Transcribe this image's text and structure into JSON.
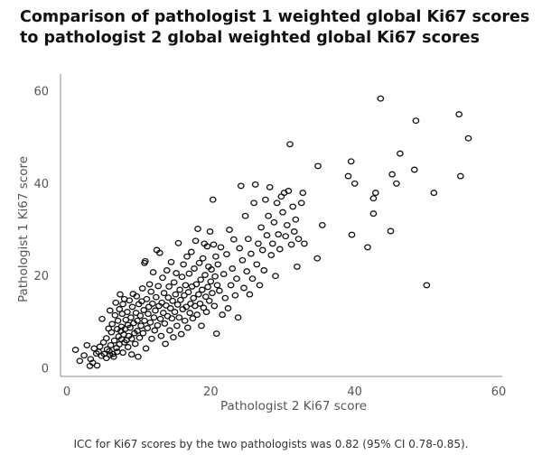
{
  "chart_data": {
    "type": "scatter",
    "title_lines": [
      "Comparison of pathologist 1 weighted global Ki67 scores",
      "to pathologist 2 global weighted global Ki67 scores"
    ],
    "xlabel": "Pathologist 2 Ki67 score",
    "ylabel": "Pathologist 1 Ki67 score",
    "xlim": [
      0,
      62
    ],
    "ylim": [
      -1,
      62
    ],
    "xticks": [
      0,
      20,
      40,
      60
    ],
    "yticks": [
      0,
      20,
      40,
      60
    ],
    "grid": false,
    "marker": "open-circle",
    "series": [
      {
        "name": "Ki67 scores",
        "points": [
          [
            1.2,
            4
          ],
          [
            1.8,
            1.6
          ],
          [
            2.4,
            2.8
          ],
          [
            2.8,
            5.0
          ],
          [
            3.2,
            0.5
          ],
          [
            3.3,
            2.0
          ],
          [
            3.6,
            1.2
          ],
          [
            3.8,
            4.3
          ],
          [
            4.1,
            3.2
          ],
          [
            4.2,
            0.6
          ],
          [
            4.4,
            3.6
          ],
          [
            4.6,
            4.7
          ],
          [
            4.8,
            2.7
          ],
          [
            4.9,
            10.7
          ],
          [
            5.1,
            5.6
          ],
          [
            5.2,
            3.1
          ],
          [
            5.5,
            6.5
          ],
          [
            5.5,
            2.2
          ],
          [
            5.6,
            4.1
          ],
          [
            5.8,
            8.6
          ],
          [
            5.9,
            3.7
          ],
          [
            6.0,
            2.9
          ],
          [
            6.0,
            12.5
          ],
          [
            6.1,
            5.0
          ],
          [
            6.2,
            7.8
          ],
          [
            6.3,
            9.6
          ],
          [
            6.4,
            3.1
          ],
          [
            6.5,
            2.5
          ],
          [
            6.6,
            6.0
          ],
          [
            6.7,
            11.5
          ],
          [
            6.8,
            14.2
          ],
          [
            6.9,
            4.4
          ],
          [
            7.0,
            8.5
          ],
          [
            7.0,
            3.6
          ],
          [
            7.1,
            10.3
          ],
          [
            7.2,
            6.9
          ],
          [
            7.3,
            5.2
          ],
          [
            7.3,
            12.8
          ],
          [
            7.4,
            16.0
          ],
          [
            7.5,
            8.1
          ],
          [
            7.6,
            9.0
          ],
          [
            7.6,
            6.3
          ],
          [
            7.7,
            11.8
          ],
          [
            7.8,
            3.4
          ],
          [
            7.8,
            13.9
          ],
          [
            7.9,
            7.3
          ],
          [
            8.0,
            5.6
          ],
          [
            8.0,
            15.0
          ],
          [
            8.1,
            8.5
          ],
          [
            8.2,
            10.5
          ],
          [
            8.3,
            6.1
          ],
          [
            8.4,
            12.2
          ],
          [
            8.5,
            4.6
          ],
          [
            8.5,
            9.4
          ],
          [
            8.6,
            7.0
          ],
          [
            8.7,
            14.7
          ],
          [
            8.8,
            8.8
          ],
          [
            8.9,
            11.0
          ],
          [
            9.0,
            6.4
          ],
          [
            9.0,
            3.0
          ],
          [
            9.1,
            13.3
          ],
          [
            9.2,
            16.1
          ],
          [
            9.3,
            9.8
          ],
          [
            9.4,
            7.6
          ],
          [
            9.5,
            5.3
          ],
          [
            9.6,
            12.0
          ],
          [
            9.7,
            15.6
          ],
          [
            9.8,
            10.3
          ],
          [
            9.8,
            8.1
          ],
          [
            9.9,
            2.5
          ],
          [
            10.0,
            13.9
          ],
          [
            10.1,
            6.6
          ],
          [
            10.2,
            11.4
          ],
          [
            10.3,
            9.2
          ],
          [
            10.4,
            14.5
          ],
          [
            10.5,
            17.3
          ],
          [
            10.6,
            7.6
          ],
          [
            10.7,
            12.6
          ],
          [
            10.8,
            22.8
          ],
          [
            10.8,
            10.3
          ],
          [
            10.9,
            23.2
          ],
          [
            11.0,
            4.3
          ],
          [
            11.1,
            15.0
          ],
          [
            11.2,
            8.7
          ],
          [
            11.3,
            11.8
          ],
          [
            11.4,
            13.3
          ],
          [
            11.5,
            18.2
          ],
          [
            11.6,
            9.9
          ],
          [
            11.7,
            16.6
          ],
          [
            11.8,
            6.4
          ],
          [
            11.9,
            14.0
          ],
          [
            12.0,
            20.8
          ],
          [
            12.1,
            11.0
          ],
          [
            12.2,
            8.2
          ],
          [
            12.3,
            12.5
          ],
          [
            12.4,
            15.4
          ],
          [
            12.5,
            25.6
          ],
          [
            12.6,
            9.3
          ],
          [
            12.7,
            17.8
          ],
          [
            12.8,
            13.5
          ],
          [
            12.9,
            25.0
          ],
          [
            13.0,
            10.7
          ],
          [
            13.1,
            7.0
          ],
          [
            13.2,
            14.2
          ],
          [
            13.3,
            19.6
          ],
          [
            13.4,
            12.0
          ],
          [
            13.5,
            16.3
          ],
          [
            13.6,
            9.7
          ],
          [
            13.7,
            5.3
          ],
          [
            13.8,
            13.6
          ],
          [
            13.9,
            21.2
          ],
          [
            14.0,
            11.3
          ],
          [
            14.1,
            15.3
          ],
          [
            14.2,
            17.7
          ],
          [
            14.3,
            8.2
          ],
          [
            14.4,
            13.0
          ],
          [
            14.5,
            23.0
          ],
          [
            14.6,
            10.8
          ],
          [
            14.7,
            14.6
          ],
          [
            14.8,
            6.7
          ],
          [
            14.9,
            18.6
          ],
          [
            15.0,
            12.2
          ],
          [
            15.1,
            16.0
          ],
          [
            15.2,
            20.6
          ],
          [
            15.3,
            9.2
          ],
          [
            15.4,
            13.8
          ],
          [
            15.5,
            27.1
          ],
          [
            15.6,
            11.0
          ],
          [
            15.7,
            17.0
          ],
          [
            15.8,
            14.8
          ],
          [
            15.9,
            7.4
          ],
          [
            16.0,
            19.8
          ],
          [
            16.1,
            12.8
          ],
          [
            16.2,
            22.5
          ],
          [
            16.3,
            15.8
          ],
          [
            16.4,
            10.3
          ],
          [
            16.5,
            18.0
          ],
          [
            16.6,
            13.3
          ],
          [
            16.7,
            24.2
          ],
          [
            16.8,
            8.8
          ],
          [
            16.9,
            16.5
          ],
          [
            17.0,
            20.5
          ],
          [
            17.1,
            12.0
          ],
          [
            17.2,
            14.0
          ],
          [
            17.3,
            25.2
          ],
          [
            17.4,
            17.7
          ],
          [
            17.5,
            10.8
          ],
          [
            17.6,
            15.2
          ],
          [
            17.7,
            21.6
          ],
          [
            17.8,
            13.5
          ],
          [
            17.9,
            27.6
          ],
          [
            18.0,
            18.2
          ],
          [
            18.1,
            11.6
          ],
          [
            18.2,
            30.2
          ],
          [
            18.3,
            16.0
          ],
          [
            18.4,
            22.8
          ],
          [
            18.5,
            14.0
          ],
          [
            18.6,
            19.2
          ],
          [
            18.7,
            9.2
          ],
          [
            18.8,
            17.0
          ],
          [
            18.9,
            23.8
          ],
          [
            19.0,
            13.1
          ],
          [
            19.1,
            27.0
          ],
          [
            19.2,
            20.2
          ],
          [
            19.3,
            15.5
          ],
          [
            19.4,
            12.2
          ],
          [
            19.5,
            26.4
          ],
          [
            19.6,
            17.6
          ],
          [
            19.7,
            22.0
          ],
          [
            19.8,
            14.6
          ],
          [
            19.9,
            29.6
          ],
          [
            20.0,
            18.8
          ],
          [
            20.1,
            21.4
          ],
          [
            20.2,
            16.3
          ],
          [
            20.3,
            36.5
          ],
          [
            20.4,
            26.8
          ],
          [
            20.5,
            13.5
          ],
          [
            20.6,
            19.9
          ],
          [
            20.7,
            24.2
          ],
          [
            20.8,
            7.5
          ],
          [
            20.9,
            18.0
          ],
          [
            21.0,
            22.5
          ],
          [
            21.2,
            16.8
          ],
          [
            21.4,
            26.2
          ],
          [
            21.6,
            11.6
          ],
          [
            21.8,
            20.4
          ],
          [
            22.0,
            15.2
          ],
          [
            22.2,
            24.7
          ],
          [
            22.4,
            13.0
          ],
          [
            22.6,
            30.0
          ],
          [
            22.8,
            18.0
          ],
          [
            23.0,
            21.6
          ],
          [
            23.2,
            27.9
          ],
          [
            23.4,
            15.8
          ],
          [
            23.6,
            19.4
          ],
          [
            23.8,
            11.0
          ],
          [
            24.0,
            26.0
          ],
          [
            24.2,
            39.5
          ],
          [
            24.4,
            23.4
          ],
          [
            24.6,
            17.4
          ],
          [
            24.8,
            33.0
          ],
          [
            25.0,
            21.0
          ],
          [
            25.2,
            28.0
          ],
          [
            25.4,
            16.0
          ],
          [
            25.6,
            24.8
          ],
          [
            25.8,
            19.4
          ],
          [
            26.0,
            35.8
          ],
          [
            26.2,
            39.8
          ],
          [
            26.4,
            22.5
          ],
          [
            26.6,
            27.0
          ],
          [
            26.8,
            18.0
          ],
          [
            27.0,
            30.5
          ],
          [
            27.2,
            25.6
          ],
          [
            27.4,
            21.2
          ],
          [
            27.6,
            36.5
          ],
          [
            27.8,
            28.8
          ],
          [
            28.0,
            33.0
          ],
          [
            28.2,
            39.2
          ],
          [
            28.4,
            24.5
          ],
          [
            28.6,
            27.0
          ],
          [
            28.8,
            31.6
          ],
          [
            29.0,
            20.0
          ],
          [
            29.2,
            35.8
          ],
          [
            29.4,
            29.0
          ],
          [
            29.6,
            25.8
          ],
          [
            29.8,
            37.2
          ],
          [
            30.0,
            33.8
          ],
          [
            30.2,
            38.0
          ],
          [
            30.4,
            28.6
          ],
          [
            30.6,
            31.0
          ],
          [
            30.8,
            38.4
          ],
          [
            31.0,
            48.5
          ],
          [
            31.2,
            26.8
          ],
          [
            31.4,
            35.0
          ],
          [
            31.6,
            29.6
          ],
          [
            31.8,
            32.2
          ],
          [
            32.0,
            22.0
          ],
          [
            32.2,
            28.0
          ],
          [
            32.6,
            35.8
          ],
          [
            32.8,
            38.0
          ],
          [
            33.0,
            27.0
          ],
          [
            34.8,
            23.8
          ],
          [
            34.9,
            43.8
          ],
          [
            35.5,
            31.0
          ],
          [
            39.1,
            41.6
          ],
          [
            39.5,
            44.8
          ],
          [
            39.6,
            28.9
          ],
          [
            40.0,
            40.0
          ],
          [
            41.8,
            26.2
          ],
          [
            42.6,
            33.5
          ],
          [
            42.6,
            36.8
          ],
          [
            42.9,
            38.0
          ],
          [
            43.6,
            58.4
          ],
          [
            45.0,
            29.7
          ],
          [
            45.2,
            42.0
          ],
          [
            45.8,
            40.0
          ],
          [
            46.3,
            46.5
          ],
          [
            48.3,
            43.0
          ],
          [
            48.5,
            53.6
          ],
          [
            50.0,
            18.0
          ],
          [
            51.0,
            38.0
          ],
          [
            54.5,
            55.0
          ],
          [
            54.7,
            41.6
          ],
          [
            55.8,
            49.8
          ]
        ]
      }
    ],
    "caption": "ICC for Ki67 scores by the two pathologists was 0.82 (95% CI 0.78-0.85)."
  }
}
